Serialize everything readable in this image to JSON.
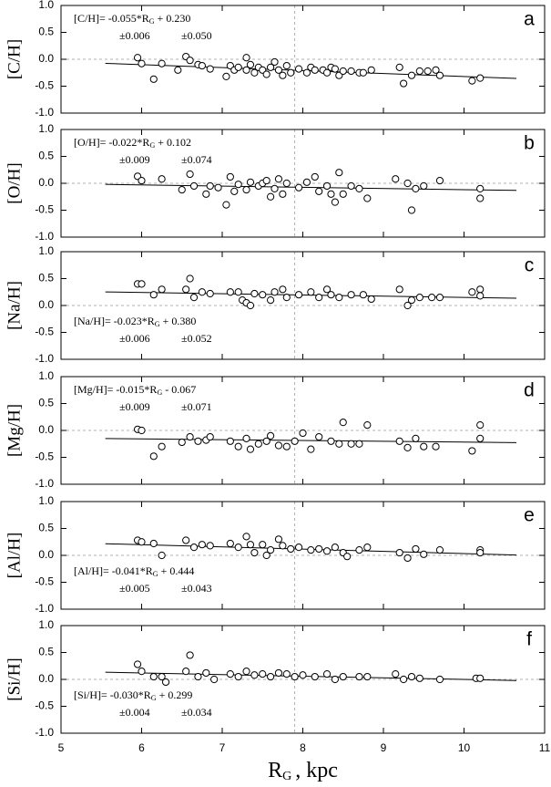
{
  "chart_data": [
    {
      "type": "scatter",
      "panel_label": "a",
      "ylabel": "[C/H]",
      "fit_text": "[C/H]= -0.055*R",
      "fit_sub": "G",
      "fit_tail": "+ 0.230",
      "fit_errors": [
        "±0.006",
        "±0.050"
      ],
      "fit": {
        "slope": -0.055,
        "intercept": 0.23,
        "x": [
          5.55,
          10.65
        ]
      },
      "vline": 7.9,
      "hline": 0,
      "xlim": [
        5,
        11
      ],
      "xticks": [
        5,
        6,
        7,
        8,
        9,
        10,
        11
      ],
      "ylim": [
        -1,
        1
      ],
      "yticks": [
        {
          "value": 1,
          "label": "1.0"
        },
        0.5,
        {
          "value": 0,
          "label": "0.0"
        },
        -0.5,
        {
          "value": -1,
          "label": "-1.0"
        }
      ],
      "x": [
        5.95,
        6.0,
        6.15,
        6.25,
        6.45,
        6.55,
        6.6,
        6.7,
        6.75,
        6.85,
        7.05,
        7.1,
        7.15,
        7.2,
        7.3,
        7.3,
        7.35,
        7.4,
        7.45,
        7.5,
        7.55,
        7.6,
        7.65,
        7.7,
        7.75,
        7.8,
        7.85,
        7.95,
        8.05,
        8.1,
        8.15,
        8.25,
        8.3,
        8.35,
        8.4,
        8.45,
        8.5,
        8.6,
        8.7,
        8.75,
        8.85,
        9.2,
        9.25,
        9.35,
        9.45,
        9.55,
        9.65,
        9.7,
        10.1,
        10.2
      ],
      "values": [
        0.03,
        -0.08,
        -0.37,
        -0.08,
        -0.2,
        0.05,
        -0.02,
        -0.1,
        -0.12,
        -0.18,
        -0.32,
        -0.12,
        -0.2,
        -0.15,
        0.03,
        -0.2,
        -0.1,
        -0.25,
        -0.15,
        -0.2,
        -0.28,
        -0.15,
        -0.05,
        -0.2,
        -0.3,
        -0.12,
        -0.25,
        -0.18,
        -0.25,
        -0.15,
        -0.2,
        -0.2,
        -0.25,
        -0.15,
        -0.18,
        -0.3,
        -0.22,
        -0.22,
        -0.25,
        -0.25,
        -0.2,
        -0.15,
        -0.45,
        -0.3,
        -0.22,
        -0.22,
        -0.2,
        -0.3,
        -0.4,
        -0.35
      ]
    },
    {
      "type": "scatter",
      "panel_label": "b",
      "ylabel": "[O/H]",
      "fit_text": "[O/H]= -0.022*R",
      "fit_sub": "G",
      "fit_tail": "+ 0.102",
      "fit_errors": [
        "±0.009",
        "±0.074"
      ],
      "fit": {
        "slope": -0.022,
        "intercept": 0.102,
        "x": [
          5.55,
          10.65
        ]
      },
      "vline": 7.9,
      "hline": 0,
      "xlim": [
        5,
        11
      ],
      "xticks": [
        5,
        6,
        7,
        8,
        9,
        10,
        11
      ],
      "ylim": [
        -1,
        1
      ],
      "yticks": [
        {
          "value": 1,
          "label": "1.0"
        },
        0.5,
        {
          "value": 0,
          "label": "0.0"
        },
        -0.5,
        {
          "value": -1,
          "label": "-1.0"
        }
      ],
      "x": [
        5.95,
        6.0,
        6.25,
        6.5,
        6.6,
        6.65,
        6.8,
        6.85,
        6.95,
        7.05,
        7.1,
        7.15,
        7.2,
        7.3,
        7.35,
        7.45,
        7.5,
        7.55,
        7.6,
        7.65,
        7.7,
        7.75,
        7.8,
        7.95,
        8.05,
        8.15,
        8.2,
        8.3,
        8.35,
        8.4,
        8.45,
        8.5,
        8.6,
        8.7,
        8.8,
        9.15,
        9.3,
        9.35,
        9.4,
        9.5,
        9.7,
        10.2,
        10.2
      ],
      "values": [
        0.13,
        0.05,
        0.08,
        -0.12,
        0.17,
        -0.05,
        -0.2,
        -0.05,
        -0.08,
        -0.4,
        0.12,
        -0.15,
        -0.02,
        -0.12,
        0.02,
        -0.05,
        0.0,
        0.05,
        -0.25,
        -0.1,
        0.08,
        -0.2,
        0.0,
        -0.08,
        0.02,
        0.12,
        -0.15,
        -0.05,
        -0.2,
        -0.35,
        0.2,
        -0.2,
        -0.05,
        -0.1,
        -0.28,
        0.08,
        0.0,
        -0.5,
        -0.1,
        -0.05,
        0.05,
        -0.1,
        -0.28
      ]
    },
    {
      "type": "scatter",
      "panel_label": "c",
      "ylabel": "[Na/H]",
      "fit_text": "[Na/H]= -0.023*R",
      "fit_sub": "G",
      "fit_tail": "+ 0.380",
      "fit_errors": [
        "±0.006",
        "±0.052"
      ],
      "fit": {
        "slope": -0.023,
        "intercept": 0.38,
        "x": [
          5.55,
          10.65
        ]
      },
      "vline": 7.9,
      "hline": 0,
      "xlim": [
        5,
        11
      ],
      "xticks": [
        5,
        6,
        7,
        8,
        9,
        10,
        11
      ],
      "ylim": [
        -1,
        1
      ],
      "yticks": [
        {
          "value": 1,
          "label": "1.0"
        },
        0.5,
        {
          "value": 0,
          "label": "0.0"
        },
        -0.5,
        {
          "value": -1,
          "label": "-1.0"
        }
      ],
      "x": [
        5.95,
        6.0,
        6.15,
        6.25,
        6.55,
        6.6,
        6.65,
        6.75,
        6.85,
        7.1,
        7.2,
        7.25,
        7.3,
        7.35,
        7.4,
        7.5,
        7.6,
        7.65,
        7.75,
        7.8,
        7.95,
        8.1,
        8.2,
        8.3,
        8.35,
        8.45,
        8.6,
        8.75,
        8.85,
        9.2,
        9.3,
        9.35,
        9.45,
        9.6,
        9.7,
        10.1,
        10.2,
        10.2
      ],
      "values": [
        0.4,
        0.4,
        0.2,
        0.3,
        0.3,
        0.5,
        0.15,
        0.25,
        0.22,
        0.25,
        0.25,
        0.1,
        0.05,
        0.0,
        0.22,
        0.2,
        0.1,
        0.25,
        0.3,
        0.15,
        0.2,
        0.25,
        0.15,
        0.3,
        0.2,
        0.15,
        0.2,
        0.2,
        0.12,
        0.3,
        0.0,
        0.1,
        0.15,
        0.15,
        0.15,
        0.25,
        0.3,
        0.18
      ]
    },
    {
      "type": "scatter",
      "panel_label": "d",
      "ylabel": "[Mg/H]",
      "fit_text": "[Mg/H]= -0.015*R",
      "fit_sub": "G",
      "fit_tail": "- 0.067",
      "fit_errors": [
        "±0.009",
        "±0.071"
      ],
      "fit": {
        "slope": -0.015,
        "intercept": -0.067,
        "x": [
          5.55,
          10.65
        ]
      },
      "vline": 7.9,
      "hline": 0,
      "xlim": [
        5,
        11
      ],
      "xticks": [
        5,
        6,
        7,
        8,
        9,
        10,
        11
      ],
      "ylim": [
        -1,
        1
      ],
      "yticks": [
        {
          "value": 1,
          "label": "1.0"
        },
        0.5,
        {
          "value": 0,
          "label": "0.0"
        },
        -0.5,
        {
          "value": -1,
          "label": "-1.0"
        }
      ],
      "x": [
        5.95,
        6.0,
        6.15,
        6.25,
        6.5,
        6.6,
        6.7,
        6.8,
        6.85,
        7.1,
        7.2,
        7.3,
        7.35,
        7.45,
        7.55,
        7.6,
        7.7,
        7.8,
        7.9,
        8.0,
        8.1,
        8.2,
        8.35,
        8.45,
        8.5,
        8.6,
        8.7,
        8.8,
        9.2,
        9.3,
        9.4,
        9.5,
        9.65,
        10.1,
        10.2,
        10.2
      ],
      "values": [
        0.02,
        0.0,
        -0.48,
        -0.3,
        -0.22,
        -0.12,
        -0.2,
        -0.18,
        -0.12,
        -0.2,
        -0.3,
        -0.15,
        -0.35,
        -0.25,
        -0.2,
        -0.1,
        -0.28,
        -0.3,
        -0.2,
        -0.05,
        -0.35,
        -0.12,
        -0.2,
        -0.25,
        0.15,
        -0.25,
        -0.25,
        0.1,
        -0.2,
        -0.32,
        -0.15,
        -0.3,
        -0.3,
        -0.38,
        0.1,
        -0.15
      ]
    },
    {
      "type": "scatter",
      "panel_label": "e",
      "ylabel": "[Al/H]",
      "fit_text": "[Al/H]= -0.041*R",
      "fit_sub": "G",
      "fit_tail": "+ 0.444",
      "fit_errors": [
        "±0.005",
        "±0.043"
      ],
      "fit": {
        "slope": -0.041,
        "intercept": 0.444,
        "x": [
          5.55,
          10.65
        ]
      },
      "vline": 7.9,
      "hline": 0,
      "xlim": [
        5,
        11
      ],
      "xticks": [
        5,
        6,
        7,
        8,
        9,
        10,
        11
      ],
      "ylim": [
        -1,
        1
      ],
      "yticks": [
        {
          "value": 1,
          "label": "1.0"
        },
        0.5,
        {
          "value": 0,
          "label": "0.0"
        },
        -0.5,
        {
          "value": -1,
          "label": "-1.0"
        }
      ],
      "x": [
        5.95,
        6.0,
        6.15,
        6.25,
        6.55,
        6.65,
        6.75,
        6.85,
        7.1,
        7.2,
        7.3,
        7.35,
        7.4,
        7.5,
        7.55,
        7.6,
        7.7,
        7.75,
        7.85,
        7.95,
        8.1,
        8.2,
        8.3,
        8.4,
        8.5,
        8.55,
        8.7,
        8.8,
        9.2,
        9.3,
        9.4,
        9.5,
        9.7,
        10.2,
        10.2
      ],
      "values": [
        0.28,
        0.25,
        0.22,
        0.0,
        0.28,
        0.15,
        0.2,
        0.18,
        0.22,
        0.15,
        0.35,
        0.2,
        0.05,
        0.2,
        0.0,
        0.1,
        0.3,
        0.18,
        0.12,
        0.15,
        0.1,
        0.12,
        0.08,
        0.15,
        0.05,
        -0.02,
        0.1,
        0.15,
        0.05,
        -0.05,
        0.12,
        0.02,
        0.1,
        0.1,
        0.05
      ]
    },
    {
      "type": "scatter",
      "panel_label": "f",
      "ylabel": "[Si/H]",
      "fit_text": "[Si/H]= -0.030*R",
      "fit_sub": "G",
      "fit_tail": "+ 0.299",
      "fit_errors": [
        "±0.004",
        "±0.034"
      ],
      "fit": {
        "slope": -0.03,
        "intercept": 0.299,
        "x": [
          5.55,
          10.65
        ]
      },
      "vline": 7.9,
      "hline": 0,
      "xlim": [
        5,
        11
      ],
      "xticks": [
        5,
        6,
        7,
        8,
        9,
        10,
        11
      ],
      "ylim": [
        -1,
        1
      ],
      "yticks": [
        {
          "value": 1,
          "label": "1.0"
        },
        0.5,
        {
          "value": 0,
          "label": "0.0"
        },
        -0.5,
        {
          "value": -1,
          "label": "-1.0"
        }
      ],
      "xlabel": "R",
      "xlabel_sub": "G",
      "xlabel_tail": ", kpc",
      "x": [
        5.95,
        6.0,
        6.15,
        6.25,
        6.3,
        6.55,
        6.6,
        6.7,
        6.8,
        6.9,
        7.1,
        7.2,
        7.3,
        7.4,
        7.5,
        7.6,
        7.7,
        7.8,
        7.9,
        8.0,
        8.15,
        8.3,
        8.4,
        8.5,
        8.7,
        8.8,
        9.15,
        9.25,
        9.35,
        9.45,
        9.7,
        10.15,
        10.2
      ],
      "values": [
        0.28,
        0.15,
        0.05,
        0.05,
        -0.05,
        0.15,
        0.45,
        0.05,
        0.12,
        0.0,
        0.1,
        0.05,
        0.15,
        0.08,
        0.1,
        0.05,
        0.12,
        0.1,
        0.05,
        0.08,
        0.05,
        0.1,
        0.0,
        0.05,
        0.05,
        0.05,
        0.1,
        0.0,
        0.05,
        0.02,
        0.0,
        0.02,
        0.02
      ]
    }
  ]
}
